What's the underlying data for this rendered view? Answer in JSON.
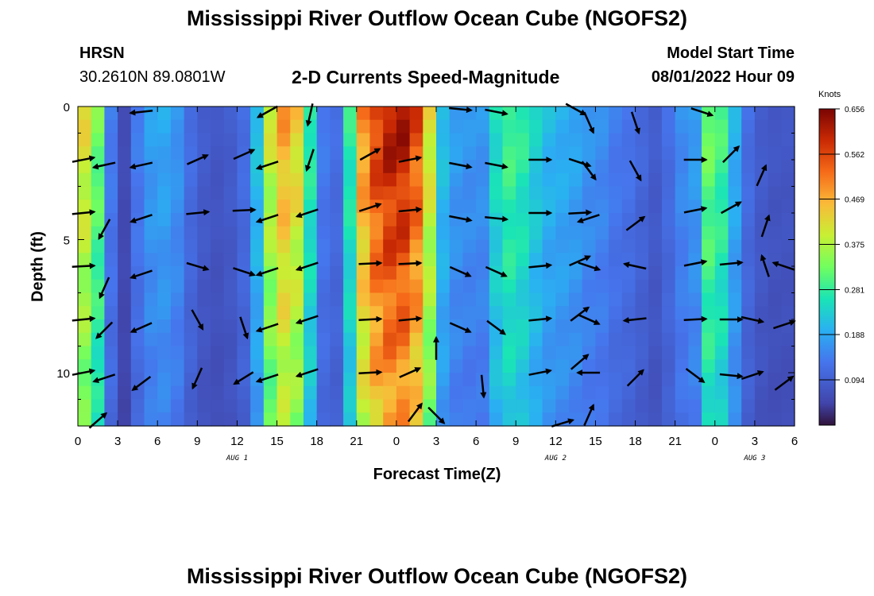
{
  "header": {
    "title": "Mississippi River Outflow Ocean Cube (NGOFS2)",
    "station": "HRSN",
    "coords": "30.2610N  89.0801W",
    "subtitle": "2-D Currents Speed-Magnitude",
    "model_label": "Model Start Time",
    "model_time": "08/01/2022 Hour 09"
  },
  "footer": {
    "title": "Mississippi River Outflow Ocean Cube (NGOFS2)"
  },
  "chart_data": {
    "type": "heatmap",
    "title": "2-D Currents Speed-Magnitude",
    "xlabel": "Forecast Time(Z)",
    "ylabel": "Depth (ft)",
    "x_range_hours": [
      0,
      54
    ],
    "y_range_ft": [
      0,
      12
    ],
    "x_tick_labels": [
      "0",
      "3",
      "6",
      "9",
      "12",
      "15",
      "18",
      "21",
      "0",
      "3",
      "6",
      "9",
      "12",
      "15",
      "18",
      "21",
      "0",
      "3",
      "6"
    ],
    "y_tick_labels": [
      "0",
      "5",
      "10"
    ],
    "y_tick_values": [
      0,
      5,
      10
    ],
    "date_labels": [
      {
        "text": "AUG 1",
        "hour": 12
      },
      {
        "text": "AUG 2",
        "hour": 36
      },
      {
        "text": "AUG 3",
        "hour": 51
      }
    ],
    "colorbar": {
      "unit": "Knots",
      "min": 0.0,
      "max": 0.656,
      "tick_labels": [
        "0.656",
        "0.562",
        "0.469",
        "0.375",
        "0.281",
        "0.188",
        "0.094"
      ],
      "tick_values": [
        0.656,
        0.562,
        0.469,
        0.375,
        0.281,
        0.188,
        0.094
      ]
    },
    "depths_ft": [
      0,
      0.5,
      1,
      1.5,
      2,
      2.5,
      3,
      3.5,
      4,
      4.5,
      5,
      5.5,
      6,
      6.5,
      7,
      7.5,
      8,
      8.5,
      9,
      9.5,
      10,
      10.5,
      11,
      11.5
    ],
    "speed_profile": [
      {
        "t": 0,
        "v": 0.42
      },
      {
        "t": 1,
        "v": 0.33
      },
      {
        "t": 2,
        "v": 0.14
      },
      {
        "t": 3,
        "v": 0.06
      },
      {
        "t": 4,
        "v": 0.14
      },
      {
        "t": 5,
        "v": 0.18
      },
      {
        "t": 6,
        "v": 0.19
      },
      {
        "t": 7,
        "v": 0.17
      },
      {
        "t": 8,
        "v": 0.12
      },
      {
        "t": 9,
        "v": 0.09
      },
      {
        "t": 10,
        "v": 0.08
      },
      {
        "t": 11,
        "v": 0.09
      },
      {
        "t": 12,
        "v": 0.12
      },
      {
        "t": 13,
        "v": 0.22
      },
      {
        "t": 14,
        "v": 0.4
      },
      {
        "t": 15,
        "v": 0.48
      },
      {
        "t": 16,
        "v": 0.44
      },
      {
        "t": 17,
        "v": 0.28
      },
      {
        "t": 18,
        "v": 0.14
      },
      {
        "t": 19,
        "v": 0.12
      },
      {
        "t": 20,
        "v": 0.28
      },
      {
        "t": 21,
        "v": 0.5
      },
      {
        "t": 22,
        "v": 0.58
      },
      {
        "t": 23,
        "v": 0.62
      },
      {
        "t": 24,
        "v": 0.62
      },
      {
        "t": 25,
        "v": 0.56
      },
      {
        "t": 26,
        "v": 0.42
      },
      {
        "t": 27,
        "v": 0.22
      },
      {
        "t": 28,
        "v": 0.18
      },
      {
        "t": 29,
        "v": 0.17
      },
      {
        "t": 30,
        "v": 0.17
      },
      {
        "t": 31,
        "v": 0.26
      },
      {
        "t": 32,
        "v": 0.3
      },
      {
        "t": 33,
        "v": 0.28
      },
      {
        "t": 34,
        "v": 0.24
      },
      {
        "t": 35,
        "v": 0.21
      },
      {
        "t": 36,
        "v": 0.2
      },
      {
        "t": 37,
        "v": 0.19
      },
      {
        "t": 38,
        "v": 0.17
      },
      {
        "t": 39,
        "v": 0.16
      },
      {
        "t": 40,
        "v": 0.14
      },
      {
        "t": 41,
        "v": 0.13
      },
      {
        "t": 42,
        "v": 0.11
      },
      {
        "t": 43,
        "v": 0.09
      },
      {
        "t": 44,
        "v": 0.12
      },
      {
        "t": 45,
        "v": 0.16
      },
      {
        "t": 46,
        "v": 0.18
      },
      {
        "t": 47,
        "v": 0.33
      },
      {
        "t": 48,
        "v": 0.3
      },
      {
        "t": 49,
        "v": 0.2
      },
      {
        "t": 50,
        "v": 0.12
      },
      {
        "t": 51,
        "v": 0.09
      },
      {
        "t": 52,
        "v": 0.08
      },
      {
        "t": 53,
        "v": 0.08
      }
    ],
    "vectors": [
      {
        "t": 0.4,
        "d": 2.0,
        "u": 1,
        "v": 0.2
      },
      {
        "t": 0.4,
        "d": 4.0,
        "u": 1,
        "v": 0.1
      },
      {
        "t": 0.4,
        "d": 6.0,
        "u": 1,
        "v": 0.05
      },
      {
        "t": 0.4,
        "d": 8.0,
        "u": 1,
        "v": 0.1
      },
      {
        "t": 0.4,
        "d": 10.0,
        "u": 1,
        "v": 0.2
      },
      {
        "t": 1.5,
        "d": 11.8,
        "u": 0.8,
        "v": 0.7
      },
      {
        "t": 2.0,
        "d": 2.2,
        "u": -0.9,
        "v": -0.2
      },
      {
        "t": 2.0,
        "d": 4.6,
        "u": -0.5,
        "v": -0.9
      },
      {
        "t": 2.0,
        "d": 6.8,
        "u": -0.4,
        "v": -0.9
      },
      {
        "t": 2.0,
        "d": 8.4,
        "u": -0.7,
        "v": -0.7
      },
      {
        "t": 2.0,
        "d": 10.2,
        "u": -0.9,
        "v": -0.3
      },
      {
        "t": 4.8,
        "d": 0.2,
        "u": -0.9,
        "v": -0.1
      },
      {
        "t": 4.8,
        "d": 2.2,
        "u": -0.9,
        "v": -0.2
      },
      {
        "t": 4.8,
        "d": 4.2,
        "u": -0.9,
        "v": -0.3
      },
      {
        "t": 4.8,
        "d": 6.3,
        "u": -0.9,
        "v": -0.3
      },
      {
        "t": 4.8,
        "d": 8.3,
        "u": -0.9,
        "v": -0.4
      },
      {
        "t": 4.8,
        "d": 10.4,
        "u": -0.8,
        "v": -0.6
      },
      {
        "t": 9.0,
        "d": 2.0,
        "u": 0.9,
        "v": 0.4
      },
      {
        "t": 9.0,
        "d": 4.0,
        "u": 1,
        "v": 0.1
      },
      {
        "t": 9.0,
        "d": 6.0,
        "u": 1,
        "v": -0.3
      },
      {
        "t": 9.0,
        "d": 8.0,
        "u": 0.5,
        "v": -0.9
      },
      {
        "t": 9.0,
        "d": 10.2,
        "u": -0.4,
        "v": -0.9
      },
      {
        "t": 12.5,
        "d": 1.8,
        "u": 0.9,
        "v": 0.4
      },
      {
        "t": 12.5,
        "d": 3.9,
        "u": 1,
        "v": 0.05
      },
      {
        "t": 12.5,
        "d": 6.2,
        "u": 0.9,
        "v": -0.3
      },
      {
        "t": 12.5,
        "d": 8.3,
        "u": 0.3,
        "v": -0.9
      },
      {
        "t": 12.5,
        "d": 10.2,
        "u": -0.8,
        "v": -0.5
      },
      {
        "t": 14.3,
        "d": 0.2,
        "u": -0.9,
        "v": -0.5
      },
      {
        "t": 14.3,
        "d": 2.2,
        "u": -0.9,
        "v": -0.3
      },
      {
        "t": 14.3,
        "d": 4.2,
        "u": -0.9,
        "v": -0.3
      },
      {
        "t": 14.3,
        "d": 6.2,
        "u": -0.9,
        "v": -0.3
      },
      {
        "t": 14.3,
        "d": 8.3,
        "u": -0.9,
        "v": -0.3
      },
      {
        "t": 14.3,
        "d": 10.2,
        "u": -0.9,
        "v": -0.3
      },
      {
        "t": 17.5,
        "d": 0.3,
        "u": -0.2,
        "v": -0.9
      },
      {
        "t": 17.5,
        "d": 2.0,
        "u": -0.3,
        "v": -0.9
      },
      {
        "t": 17.3,
        "d": 4.0,
        "u": -0.9,
        "v": -0.3
      },
      {
        "t": 17.3,
        "d": 6.0,
        "u": -0.9,
        "v": -0.3
      },
      {
        "t": 17.3,
        "d": 8.0,
        "u": -0.9,
        "v": -0.3
      },
      {
        "t": 17.3,
        "d": 10.0,
        "u": -0.9,
        "v": -0.3
      },
      {
        "t": 22.0,
        "d": 1.8,
        "u": 0.9,
        "v": 0.5
      },
      {
        "t": 22.0,
        "d": 3.8,
        "u": 0.9,
        "v": 0.3
      },
      {
        "t": 22.0,
        "d": 5.9,
        "u": 1,
        "v": 0.05
      },
      {
        "t": 22.0,
        "d": 8.0,
        "u": 1,
        "v": 0.05
      },
      {
        "t": 22.0,
        "d": 10.0,
        "u": 1,
        "v": 0.05
      },
      {
        "t": 25.0,
        "d": 2.0,
        "u": 1,
        "v": 0.2
      },
      {
        "t": 25.0,
        "d": 3.9,
        "u": 1,
        "v": 0.1
      },
      {
        "t": 25.0,
        "d": 5.9,
        "u": 1,
        "v": 0.05
      },
      {
        "t": 25.0,
        "d": 8.0,
        "u": 1,
        "v": 0.1
      },
      {
        "t": 25.0,
        "d": 10.0,
        "u": 0.9,
        "v": 0.4
      },
      {
        "t": 25.4,
        "d": 11.5,
        "u": 0.6,
        "v": 0.8
      },
      {
        "t": 27.0,
        "d": 9.1,
        "u": 0,
        "v": 1
      },
      {
        "t": 27.0,
        "d": 11.6,
        "u": 0.7,
        "v": -0.7
      },
      {
        "t": 28.8,
        "d": 0.1,
        "u": 1,
        "v": -0.1
      },
      {
        "t": 28.8,
        "d": 2.2,
        "u": 1,
        "v": -0.2
      },
      {
        "t": 28.8,
        "d": 4.2,
        "u": 1,
        "v": -0.2
      },
      {
        "t": 28.8,
        "d": 6.2,
        "u": 0.9,
        "v": -0.4
      },
      {
        "t": 28.8,
        "d": 8.3,
        "u": 0.9,
        "v": -0.4
      },
      {
        "t": 30.5,
        "d": 10.5,
        "u": 0.1,
        "v": -1
      },
      {
        "t": 31.5,
        "d": 0.2,
        "u": 1,
        "v": -0.2
      },
      {
        "t": 31.5,
        "d": 2.2,
        "u": 1,
        "v": -0.2
      },
      {
        "t": 31.5,
        "d": 4.2,
        "u": 1,
        "v": -0.1
      },
      {
        "t": 31.5,
        "d": 6.2,
        "u": 0.9,
        "v": -0.4
      },
      {
        "t": 31.5,
        "d": 8.3,
        "u": 0.8,
        "v": -0.6
      },
      {
        "t": 34.8,
        "d": 2.0,
        "u": 1,
        "v": 0
      },
      {
        "t": 34.8,
        "d": 4.0,
        "u": 1,
        "v": 0
      },
      {
        "t": 34.8,
        "d": 6.0,
        "u": 1,
        "v": 0.1
      },
      {
        "t": 34.8,
        "d": 8.0,
        "u": 1,
        "v": 0.1
      },
      {
        "t": 34.8,
        "d": 10.0,
        "u": 1,
        "v": 0.2
      },
      {
        "t": 36.5,
        "d": 11.9,
        "u": 1,
        "v": 0.3
      },
      {
        "t": 37.5,
        "d": 0.1,
        "u": 0.9,
        "v": -0.5
      },
      {
        "t": 37.8,
        "d": 2.1,
        "u": 0.9,
        "v": -0.3
      },
      {
        "t": 37.8,
        "d": 4.0,
        "u": 0.9,
        "v": 0.05
      },
      {
        "t": 37.8,
        "d": 5.8,
        "u": 0.9,
        "v": 0.4
      },
      {
        "t": 37.8,
        "d": 7.8,
        "u": 0.8,
        "v": 0.6
      },
      {
        "t": 37.8,
        "d": 9.6,
        "u": 0.7,
        "v": 0.6
      },
      {
        "t": 38.5,
        "d": 11.6,
        "u": 0.4,
        "v": 0.9
      },
      {
        "t": 38.5,
        "d": 0.6,
        "u": 0.4,
        "v": -0.9
      },
      {
        "t": 38.5,
        "d": 2.4,
        "u": 0.6,
        "v": -0.8
      },
      {
        "t": 38.5,
        "d": 4.2,
        "u": -0.9,
        "v": -0.3
      },
      {
        "t": 38.5,
        "d": 6.0,
        "u": 0.9,
        "v": -0.3
      },
      {
        "t": 38.5,
        "d": 8.0,
        "u": 0.9,
        "v": -0.4
      },
      {
        "t": 38.5,
        "d": 10.0,
        "u": -0.9,
        "v": 0
      },
      {
        "t": 42.0,
        "d": 0.6,
        "u": 0.3,
        "v": -0.9
      },
      {
        "t": 42.0,
        "d": 2.4,
        "u": 0.5,
        "v": -0.9
      },
      {
        "t": 42.0,
        "d": 4.4,
        "u": 0.8,
        "v": 0.6
      },
      {
        "t": 42.0,
        "d": 6.0,
        "u": -0.9,
        "v": 0.2
      },
      {
        "t": 42.0,
        "d": 8.0,
        "u": -0.9,
        "v": -0.1
      },
      {
        "t": 42.0,
        "d": 10.2,
        "u": 0.7,
        "v": 0.7
      },
      {
        "t": 46.5,
        "d": 2.0,
        "u": 1,
        "v": 0
      },
      {
        "t": 46.5,
        "d": 3.9,
        "u": 1,
        "v": 0.2
      },
      {
        "t": 46.5,
        "d": 5.9,
        "u": 1,
        "v": 0.2
      },
      {
        "t": 46.5,
        "d": 8.0,
        "u": 1,
        "v": 0.05
      },
      {
        "t": 46.5,
        "d": 10.1,
        "u": 0.8,
        "v": -0.6
      },
      {
        "t": 47.0,
        "d": 0.2,
        "u": 0.9,
        "v": -0.3
      },
      {
        "t": 49.2,
        "d": 1.8,
        "u": 0.7,
        "v": 0.7
      },
      {
        "t": 49.2,
        "d": 3.8,
        "u": 0.9,
        "v": 0.5
      },
      {
        "t": 49.2,
        "d": 5.9,
        "u": 1,
        "v": 0.1
      },
      {
        "t": 49.2,
        "d": 8.0,
        "u": 1,
        "v": 0
      },
      {
        "t": 49.2,
        "d": 10.1,
        "u": 1,
        "v": -0.1
      },
      {
        "t": 50.8,
        "d": 8.0,
        "u": 0.9,
        "v": -0.2
      },
      {
        "t": 50.8,
        "d": 10.1,
        "u": 0.9,
        "v": 0.3
      },
      {
        "t": 51.5,
        "d": 2.6,
        "u": 0.4,
        "v": 0.9
      },
      {
        "t": 51.8,
        "d": 4.5,
        "u": 0.3,
        "v": 0.9
      },
      {
        "t": 51.8,
        "d": 6.0,
        "u": -0.3,
        "v": 0.9
      },
      {
        "t": 53.2,
        "d": 8.2,
        "u": 0.9,
        "v": 0.3
      },
      {
        "t": 53.2,
        "d": 10.4,
        "u": 0.8,
        "v": 0.6
      },
      {
        "t": 53.2,
        "d": 6.0,
        "u": -0.9,
        "v": 0.3
      }
    ]
  }
}
